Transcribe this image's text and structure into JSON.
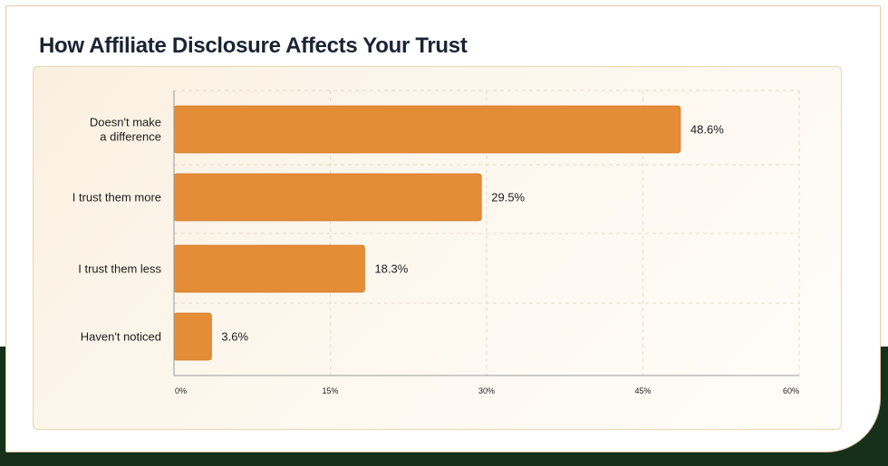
{
  "title": "How Affiliate Disclosure Affects Your Trust",
  "colors": {
    "bar": "#e58c36",
    "bar_stroke": "#cf7a2a",
    "grid": "#e6dcc8",
    "axis": "#9a9a9a",
    "band": "#17301a"
  },
  "chart_data": {
    "type": "bar",
    "orientation": "horizontal",
    "title": "How Affiliate Disclosure Affects Your Trust",
    "categories": [
      [
        "Doesn't make",
        "a difference"
      ],
      [
        "I trust them more"
      ],
      [
        "I trust them less"
      ],
      [
        "Haven't noticed"
      ]
    ],
    "values": [
      48.6,
      29.5,
      18.3,
      3.6
    ],
    "value_labels": [
      "48.6%",
      "29.5%",
      "18.3%",
      "3.6%"
    ],
    "xlim": [
      0,
      60
    ],
    "xticks": [
      0,
      15,
      30,
      45,
      60
    ],
    "xtick_labels": [
      "0%",
      "15%",
      "30%",
      "45%",
      "60%"
    ],
    "grid": true,
    "legend": "none"
  }
}
